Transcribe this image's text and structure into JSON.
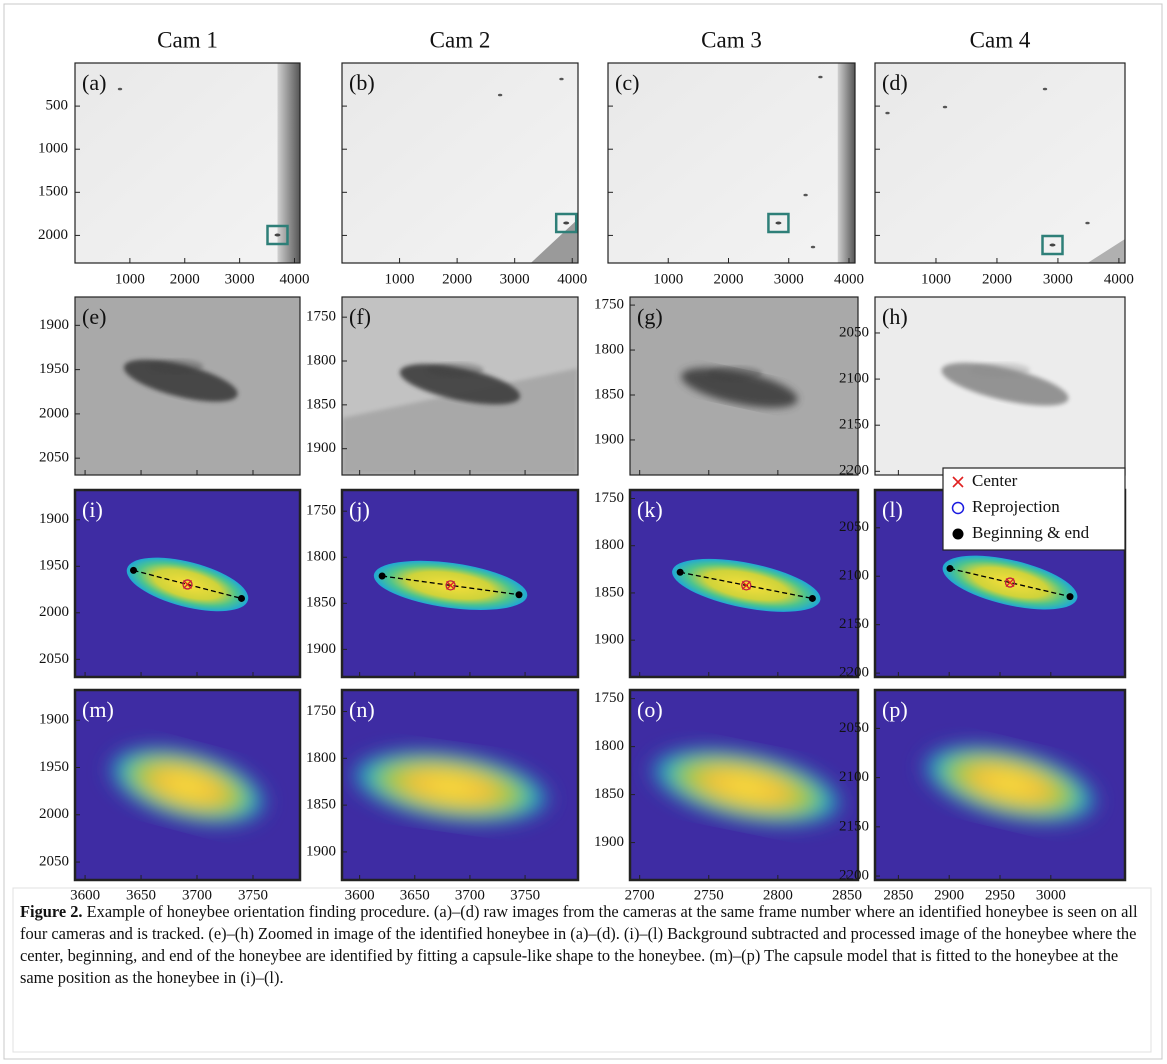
{
  "column_headers": [
    "Cam 1",
    "Cam 2",
    "Cam 3",
    "Cam 4"
  ],
  "raw": {
    "labels": [
      "(a)",
      "(b)",
      "(c)",
      "(d)"
    ],
    "xlim": [
      0,
      4100
    ],
    "xticks": [
      1000,
      2000,
      3000,
      4000
    ],
    "ylim": [
      0,
      2320
    ],
    "yticks": [
      500,
      1000,
      1500,
      2000
    ]
  },
  "zoom": {
    "rows": [
      {
        "labels": [
          "(e)",
          "(f)",
          "(g)",
          "(h)"
        ]
      },
      {
        "labels": [
          "(i)",
          "(j)",
          "(k)",
          "(l)"
        ]
      },
      {
        "labels": [
          "(m)",
          "(n)",
          "(o)",
          "(p)"
        ]
      }
    ],
    "columns": [
      {
        "xlim": [
          3591,
          3792
        ],
        "xticks": [
          3600,
          3650,
          3700,
          3750
        ],
        "ylim": [
          1868,
          2069
        ],
        "yticks": [
          1900,
          1950,
          2000,
          2050
        ]
      },
      {
        "xlim": [
          3584,
          3798
        ],
        "xticks": [
          3600,
          3650,
          3700,
          3750
        ],
        "ylim": [
          1727,
          1930
        ],
        "yticks": [
          1750,
          1800,
          1850,
          1900
        ]
      },
      {
        "xlim": [
          2693,
          2858
        ],
        "xticks": [
          2700,
          2750,
          2800,
          2850
        ],
        "ylim": [
          1741,
          1939
        ],
        "yticks": [
          1750,
          1800,
          1850,
          1900
        ]
      },
      {
        "xlim": [
          2827,
          3073
        ],
        "xticks": [
          2850,
          2900,
          2950,
          3000
        ],
        "ylim": [
          2011,
          2204
        ],
        "yticks": [
          2050,
          2100,
          2150,
          2200
        ]
      }
    ]
  },
  "legend": [
    "Center",
    "Reprojection",
    "Beginning & end"
  ],
  "caption": {
    "label": "Figure 2.",
    "text": "Example of honeybee orientation finding procedure. (a)–(d) raw images from the cameras at the same frame number where an identified honeybee is seen on all four cameras and is tracked. (e)–(h) Zoomed in image of the identified honeybee in (a)–(d). (i)–(l) Background subtracted and processed image of the honeybee where the center, beginning, and end of the honeybee are identified by fitting a capsule-like shape to the honeybee. (m)–(p) The capsule model that is fitted to the honeybee at the same position as the honeybee in (i)–(l)."
  }
}
